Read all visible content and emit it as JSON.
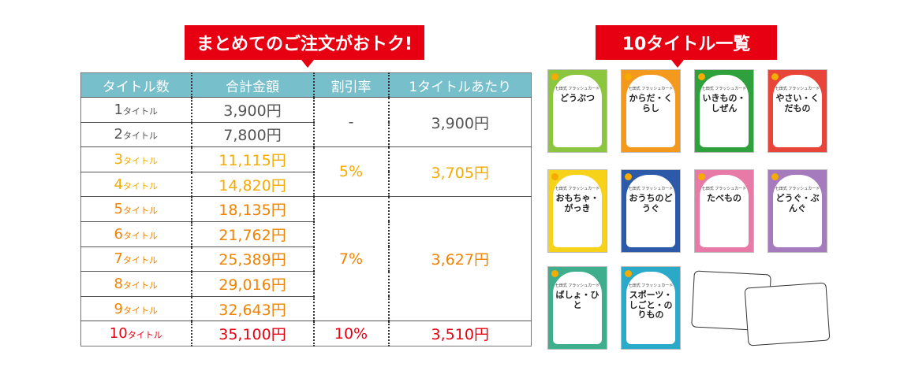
{
  "callouts": {
    "left": "まとめてのご注文がおトク!",
    "right": "10タイトル一覧"
  },
  "table": {
    "headers": [
      "タイトル数",
      "合計金額",
      "割引率",
      "1タイトルあたり"
    ],
    "rows": [
      {
        "n": "1",
        "unit": "タイトル",
        "total": "3,900円",
        "color": "g"
      },
      {
        "n": "2",
        "unit": "タイトル",
        "total": "7,800円",
        "color": "g"
      },
      {
        "n": "3",
        "unit": "タイトル",
        "total": "11,115円",
        "color": "y"
      },
      {
        "n": "4",
        "unit": "タイトル",
        "total": "14,820円",
        "color": "y"
      },
      {
        "n": "5",
        "unit": "タイトル",
        "total": "18,135円",
        "color": "o"
      },
      {
        "n": "6",
        "unit": "タイトル",
        "total": "21,762円",
        "color": "o"
      },
      {
        "n": "7",
        "unit": "タイトル",
        "total": "25,389円",
        "color": "o"
      },
      {
        "n": "8",
        "unit": "タイトル",
        "total": "29,016円",
        "color": "o"
      },
      {
        "n": "9",
        "unit": "タイトル",
        "total": "32,643円",
        "color": "o"
      },
      {
        "n": "10",
        "unit": "タイトル",
        "total": "35,100円",
        "color": "r"
      }
    ],
    "groups": [
      {
        "rate": "-",
        "per": "3,900円"
      },
      {
        "rate": "5%",
        "per": "3,705円"
      },
      {
        "rate": "7%",
        "per": "3,627円"
      },
      {
        "rate": "10%",
        "per": "3,510円"
      }
    ]
  },
  "books": [
    {
      "title": "どうぶつ",
      "color": "#8cc63f"
    },
    {
      "title": "からだ・くらし",
      "color": "#f39a1e"
    },
    {
      "title": "いきもの・しぜん",
      "color": "#2ea03c"
    },
    {
      "title": "やさい・くだもの",
      "color": "#e8443a"
    },
    {
      "title": "おもちゃ・がっき",
      "color": "#f6d21a"
    },
    {
      "title": "おうちのどうぐ",
      "color": "#2d5aa8"
    },
    {
      "title": "たべもの",
      "color": "#e77aa6"
    },
    {
      "title": "どうぐ・ぶんぐ",
      "color": "#a57bbd"
    },
    {
      "title": "ばしょ・ひと",
      "color": "#3fae8c"
    },
    {
      "title": "スポーツ・しごと・のりもの",
      "color": "#2aa9c9"
    }
  ],
  "book_subtitle": "七田式 フラッシュカード"
}
